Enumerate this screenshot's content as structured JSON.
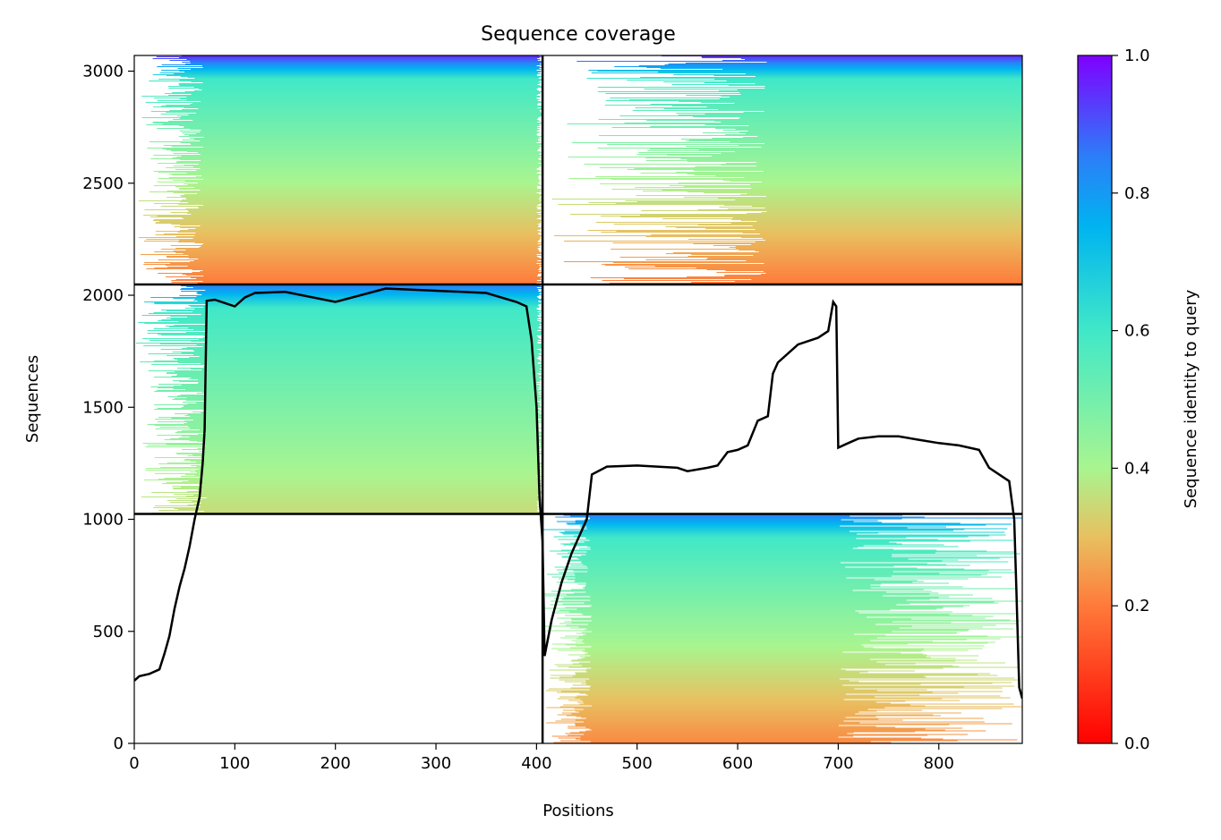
{
  "chart_data": {
    "type": "heatmap",
    "title": "Sequence coverage",
    "xlabel": "Positions",
    "ylabel": "Sequences",
    "xlim": [
      0,
      883
    ],
    "ylim": [
      0,
      3070
    ],
    "xticks": [
      0,
      100,
      200,
      300,
      400,
      500,
      600,
      700,
      800
    ],
    "yticks": [
      0,
      500,
      1000,
      1500,
      2000,
      2500,
      3000
    ],
    "grid": false,
    "legend": "none",
    "colorbar": {
      "label": "Sequence identity to query",
      "range": [
        0,
        1
      ],
      "ticks": [
        "0.0",
        "0.2",
        "0.4",
        "0.6",
        "0.8",
        "1.0"
      ],
      "colormap": "rainbow_r"
    },
    "block_dividers": {
      "x": [
        406
      ],
      "y": [
        1024,
        2048
      ]
    },
    "coverage_blocks": [
      {
        "x_range": [
          0,
          406
        ],
        "y_range": [
          2048,
          3070
        ],
        "coverage_start": [
          4,
          70
        ],
        "coverage_end": [
          400,
          406
        ],
        "identity_top": 0.95,
        "identity_bottom": 0.2
      },
      {
        "x_range": [
          406,
          883
        ],
        "y_range": [
          2048,
          3070
        ],
        "coverage_start": [
          406,
          630
        ],
        "coverage_end": [
          883,
          883
        ],
        "identity_top": 0.95,
        "identity_bottom": 0.2
      },
      {
        "x_range": [
          0,
          406
        ],
        "y_range": [
          1024,
          2048
        ],
        "coverage_start": [
          0,
          72
        ],
        "coverage_end": [
          400,
          406
        ],
        "identity_top": 0.85,
        "identity_bottom": 0.35
      },
      {
        "x_range": [
          406,
          883
        ],
        "y_range": [
          0,
          1024
        ],
        "coverage_start": [
          406,
          455
        ],
        "coverage_end": [
          700,
          883
        ],
        "identity_top": 0.85,
        "identity_bottom": 0.22
      }
    ],
    "coverage_line": {
      "x": [
        0,
        5,
        15,
        25,
        30,
        35,
        40,
        45,
        50,
        55,
        60,
        65,
        68,
        70,
        72,
        80,
        100,
        110,
        120,
        150,
        200,
        250,
        300,
        350,
        380,
        390,
        395,
        400,
        403,
        406,
        408,
        415,
        425,
        435,
        445,
        450,
        455,
        470,
        500,
        540,
        550,
        570,
        580,
        590,
        600,
        610,
        620,
        630,
        635,
        640,
        660,
        680,
        690,
        695,
        698,
        700,
        710,
        720,
        740,
        760,
        780,
        800,
        820,
        840,
        850,
        860,
        870,
        875,
        877,
        880,
        883
      ],
      "y": [
        280,
        300,
        310,
        330,
        400,
        480,
        600,
        700,
        780,
        880,
        1000,
        1100,
        1250,
        1400,
        1975,
        1980,
        1950,
        1990,
        2010,
        2015,
        1970,
        2030,
        2020,
        2010,
        1970,
        1950,
        1800,
        1500,
        1100,
        900,
        390,
        550,
        720,
        850,
        950,
        1000,
        1200,
        1235,
        1240,
        1230,
        1215,
        1230,
        1240,
        1300,
        1310,
        1330,
        1440,
        1460,
        1650,
        1700,
        1780,
        1810,
        1840,
        1970,
        1950,
        1320,
        1340,
        1360,
        1370,
        1370,
        1355,
        1340,
        1330,
        1310,
        1230,
        1200,
        1170,
        1000,
        700,
        250,
        200
      ]
    }
  }
}
